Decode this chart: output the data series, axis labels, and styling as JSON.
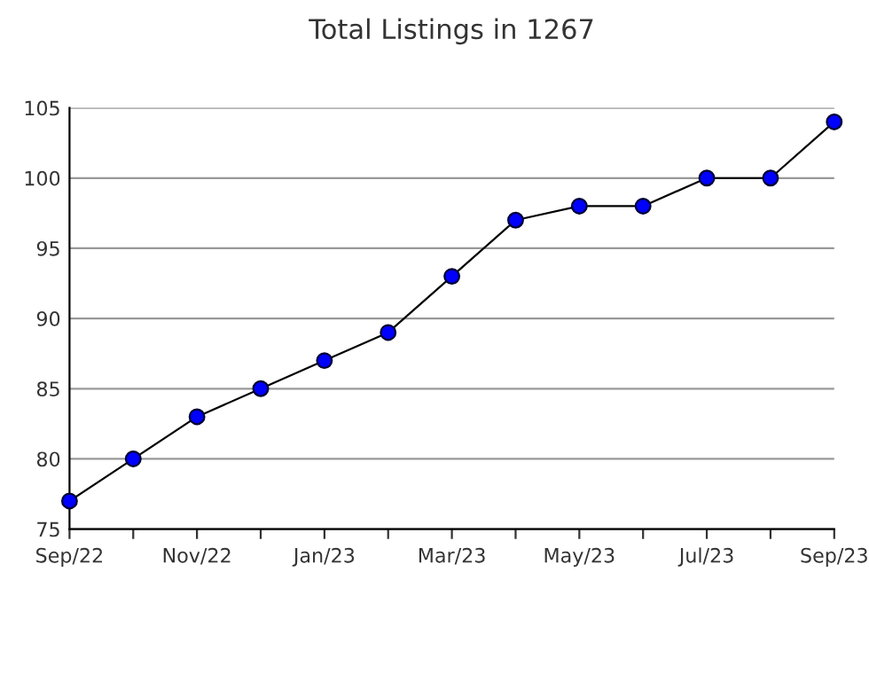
{
  "chart_data": {
    "type": "line",
    "title": "Total Listings in 1267",
    "categories": [
      "Sep/22",
      null,
      "Nov/22",
      null,
      "Jan/23",
      null,
      "Mar/23",
      null,
      "May/23",
      null,
      "Jul/23",
      null,
      "Sep/23"
    ],
    "series": [
      {
        "color": "#0000ff",
        "values": [
          77,
          80,
          83,
          85,
          87,
          89,
          93,
          97,
          98,
          98,
          100,
          100,
          104
        ]
      }
    ],
    "ylim": [
      75,
      105
    ],
    "yticks": [
      75,
      80,
      85,
      90,
      95,
      100,
      105
    ],
    "grid": "y",
    "marker": "circle",
    "line_style": "solid",
    "legend": false
  }
}
